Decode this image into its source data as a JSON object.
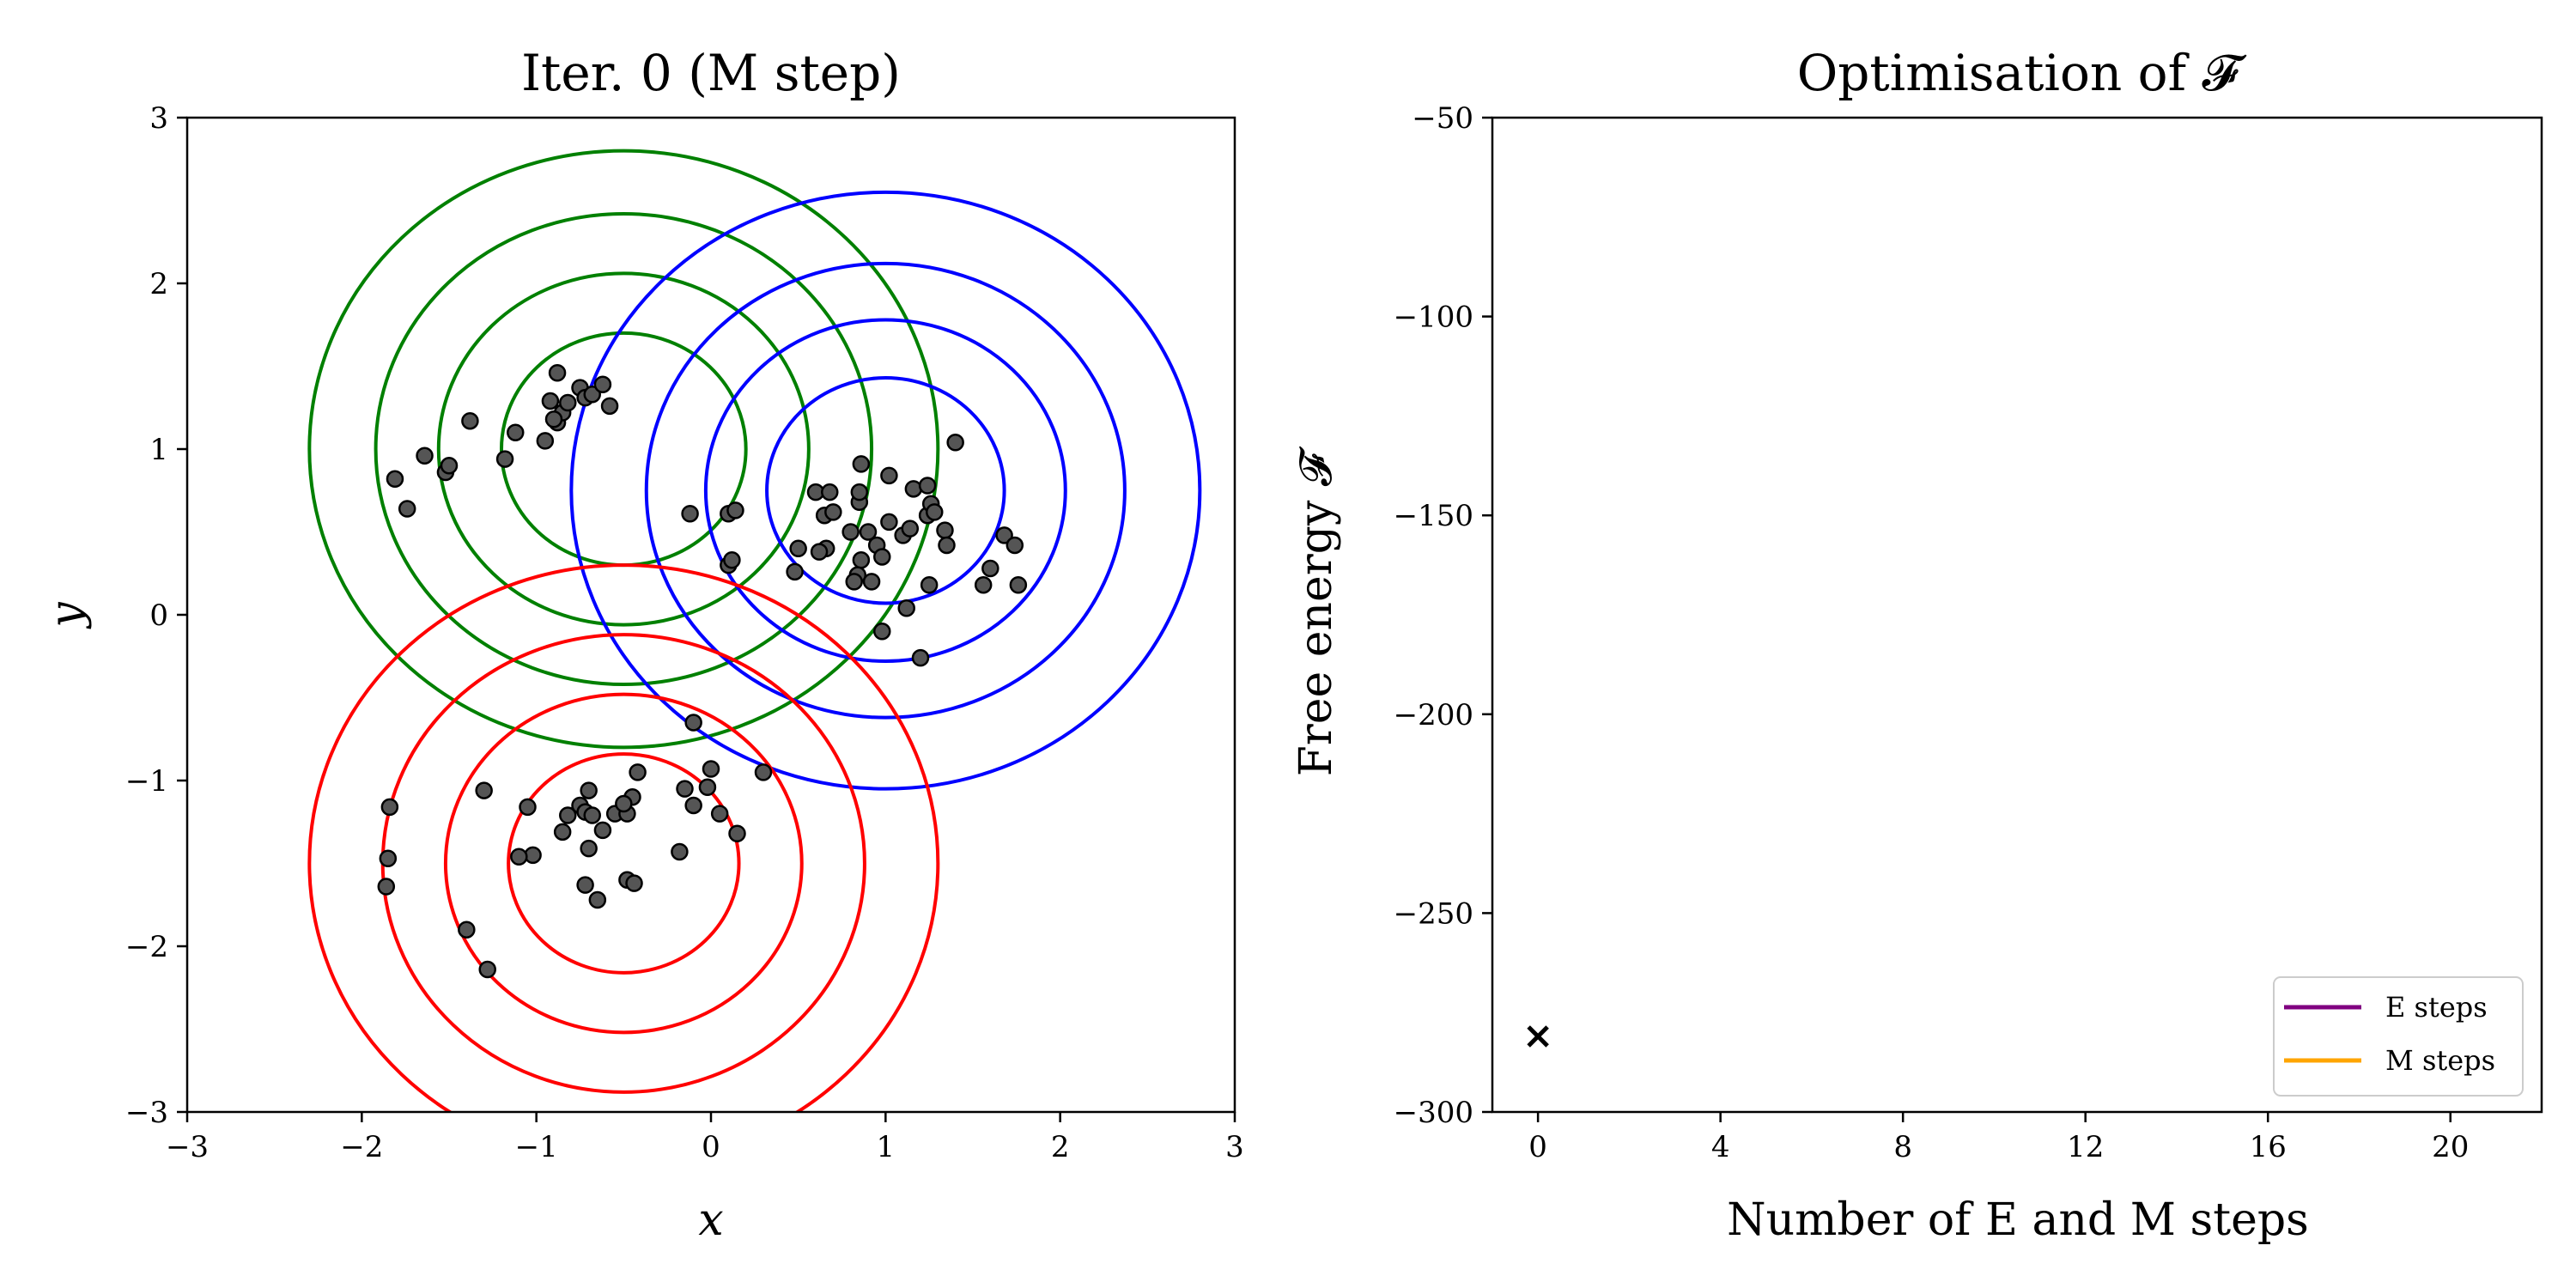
{
  "chart_data": [
    {
      "type": "scatter",
      "title": "Iter. 0 (M step)",
      "xlabel": "x",
      "ylabel": "y",
      "xlim": [
        -3,
        3
      ],
      "ylim": [
        -3,
        3
      ],
      "xticks": [
        -3,
        -2,
        -1,
        0,
        1,
        2,
        3
      ],
      "yticks": [
        -3,
        -2,
        -1,
        0,
        1,
        2,
        3
      ],
      "tick_labels": [
        "−3",
        "−2",
        "−1",
        "0",
        "1",
        "2",
        "3"
      ],
      "grid": false,
      "point_color": "#555555",
      "components": [
        {
          "color": "#008000",
          "mean": [
            -0.5,
            1.0
          ],
          "radii": [
            0.7,
            1.06,
            1.42,
            1.8
          ]
        },
        {
          "color": "#0000ff",
          "mean": [
            1.0,
            0.75
          ],
          "radii": [
            0.68,
            1.03,
            1.37,
            1.8
          ]
        },
        {
          "color": "#ff0000",
          "mean": [
            -0.5,
            -1.5
          ],
          "radii": [
            0.66,
            1.02,
            1.38,
            1.8
          ]
        }
      ],
      "points": [
        [
          -0.88,
          1.46
        ],
        [
          -0.88,
          1.16
        ],
        [
          -0.75,
          1.37
        ],
        [
          -0.72,
          1.31
        ],
        [
          -0.68,
          1.33
        ],
        [
          -0.62,
          1.39
        ],
        [
          -0.85,
          1.22
        ],
        [
          -0.82,
          1.28
        ],
        [
          -0.9,
          1.18
        ],
        [
          -0.58,
          1.26
        ],
        [
          -0.92,
          1.29
        ],
        [
          -0.95,
          1.05
        ],
        [
          -1.12,
          1.1
        ],
        [
          -1.18,
          0.94
        ],
        [
          -1.38,
          1.17
        ],
        [
          -1.52,
          0.86
        ],
        [
          -1.5,
          0.9
        ],
        [
          -1.64,
          0.96
        ],
        [
          -1.74,
          0.64
        ],
        [
          -1.81,
          0.82
        ],
        [
          -0.12,
          0.61
        ],
        [
          0.1,
          0.61
        ],
        [
          0.14,
          0.63
        ],
        [
          0.1,
          0.3
        ],
        [
          0.12,
          0.33
        ],
        [
          0.48,
          0.26
        ],
        [
          0.5,
          0.4
        ],
        [
          0.6,
          0.74
        ],
        [
          0.68,
          0.74
        ],
        [
          0.65,
          0.6
        ],
        [
          0.7,
          0.62
        ],
        [
          0.66,
          0.4
        ],
        [
          0.62,
          0.38
        ],
        [
          0.8,
          0.5
        ],
        [
          0.85,
          0.68
        ],
        [
          0.85,
          0.74
        ],
        [
          0.86,
          0.91
        ],
        [
          0.9,
          0.5
        ],
        [
          0.86,
          0.33
        ],
        [
          0.84,
          0.24
        ],
        [
          0.82,
          0.2
        ],
        [
          0.92,
          0.2
        ],
        [
          0.95,
          0.42
        ],
        [
          0.98,
          0.35
        ],
        [
          1.02,
          0.56
        ],
        [
          1.02,
          0.84
        ],
        [
          1.1,
          0.48
        ],
        [
          1.14,
          0.52
        ],
        [
          1.16,
          0.76
        ],
        [
          1.24,
          0.78
        ],
        [
          1.24,
          0.6
        ],
        [
          1.26,
          0.67
        ],
        [
          1.28,
          0.62
        ],
        [
          1.34,
          0.51
        ],
        [
          1.35,
          0.42
        ],
        [
          1.4,
          1.04
        ],
        [
          1.25,
          0.18
        ],
        [
          1.12,
          0.04
        ],
        [
          0.98,
          -0.1
        ],
        [
          1.2,
          -0.26
        ],
        [
          1.56,
          0.18
        ],
        [
          1.6,
          0.28
        ],
        [
          1.68,
          0.48
        ],
        [
          1.74,
          0.42
        ],
        [
          1.76,
          0.18
        ],
        [
          -0.82,
          -1.21
        ],
        [
          -0.75,
          -1.15
        ],
        [
          -0.72,
          -1.19
        ],
        [
          -0.7,
          -1.06
        ],
        [
          -0.68,
          -1.21
        ],
        [
          -0.7,
          -1.41
        ],
        [
          -0.85,
          -1.31
        ],
        [
          -0.55,
          -1.2
        ],
        [
          -0.45,
          -1.1
        ],
        [
          -0.48,
          -1.2
        ],
        [
          -0.5,
          -1.14
        ],
        [
          -0.42,
          -0.95
        ],
        [
          -0.62,
          -1.3
        ],
        [
          -0.72,
          -1.63
        ],
        [
          -0.65,
          -1.72
        ],
        [
          -0.48,
          -1.6
        ],
        [
          -0.44,
          -1.62
        ],
        [
          -1.05,
          -1.16
        ],
        [
          -1.02,
          -1.45
        ],
        [
          -1.1,
          -1.46
        ],
        [
          -1.3,
          -1.06
        ],
        [
          -1.4,
          -1.9
        ],
        [
          -1.28,
          -2.14
        ],
        [
          -1.84,
          -1.16
        ],
        [
          -1.85,
          -1.47
        ],
        [
          -1.86,
          -1.64
        ],
        [
          -0.18,
          -1.43
        ],
        [
          -0.1,
          -0.65
        ],
        [
          0.0,
          -0.93
        ],
        [
          -0.15,
          -1.05
        ],
        [
          -0.1,
          -1.15
        ],
        [
          -0.02,
          -1.04
        ],
        [
          0.05,
          -1.2
        ],
        [
          0.15,
          -1.32
        ],
        [
          0.3,
          -0.95
        ]
      ]
    },
    {
      "type": "line",
      "title": "Optimisation of 𝓕",
      "xlabel": "Number of E and M steps",
      "ylabel": "Free energy 𝓕",
      "xlim": [
        -1,
        22
      ],
      "ylim": [
        -300,
        -50
      ],
      "xticks": [
        0,
        4,
        8,
        12,
        16,
        20
      ],
      "xtick_labels": [
        "0",
        "4",
        "8",
        "12",
        "16",
        "20"
      ],
      "yticks": [
        -300,
        -250,
        -200,
        -150,
        -100,
        -50
      ],
      "ytick_labels": [
        "−300",
        "−250",
        "−200",
        "−150",
        "−100",
        "−50"
      ],
      "grid": false,
      "legend_placement": "lower-right",
      "series": [
        {
          "name": "E steps",
          "color": "#800080",
          "x": [],
          "y": []
        },
        {
          "name": "M steps",
          "color": "#ffa500",
          "x": [],
          "y": []
        }
      ],
      "markers": [
        {
          "x": 0,
          "y": -281,
          "symbol": "×",
          "color": "#000000"
        }
      ]
    }
  ]
}
